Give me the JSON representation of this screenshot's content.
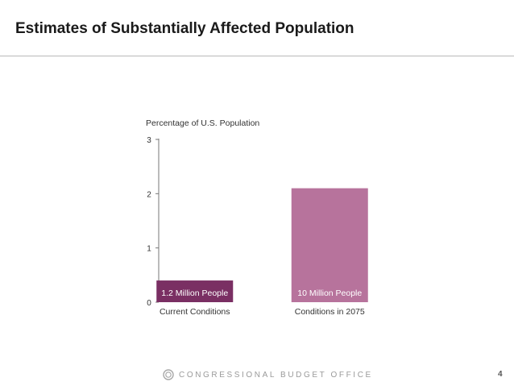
{
  "slide": {
    "title": "Estimates of Substantially Affected Population",
    "page_number": "4"
  },
  "footer": {
    "organization": "CONGRESSIONAL BUDGET OFFICE",
    "logo_icon": "cbo-seal-icon"
  },
  "chart_data": {
    "type": "bar",
    "ylabel": "Percentage of U.S. Population",
    "xlabel": "",
    "ylim": [
      0,
      3
    ],
    "yticks": [
      0,
      1,
      2,
      3
    ],
    "categories": [
      "Current Conditions",
      "Conditions in 2075"
    ],
    "values": [
      0.4,
      2.1
    ],
    "data_labels": [
      "1.2 Million People",
      "10 Million People"
    ],
    "colors": [
      "#7a2f63",
      "#b7739c"
    ],
    "grid": false
  }
}
